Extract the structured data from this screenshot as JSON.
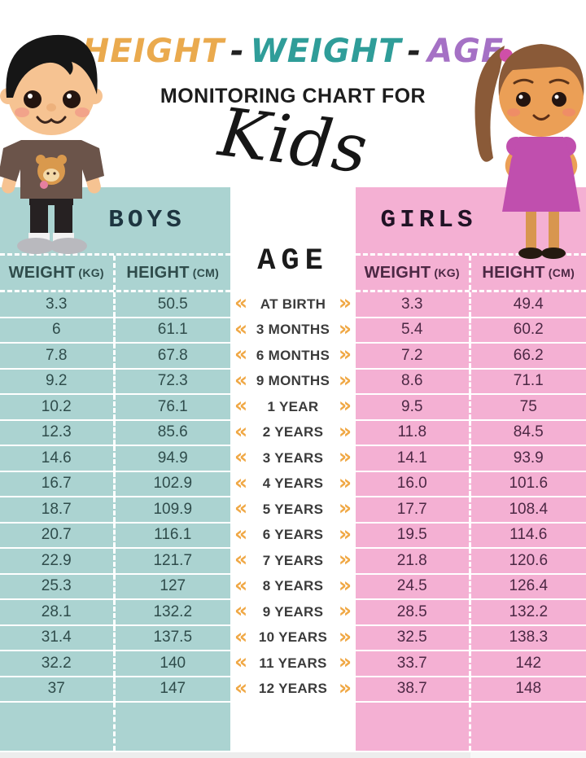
{
  "title": {
    "words": [
      {
        "text": "HEIGHT"
      },
      {
        "text": "WEIGHT"
      },
      {
        "text": "AGE"
      }
    ],
    "dash": "-",
    "subtitle": "MONITORING CHART FOR",
    "script_word": "Kids"
  },
  "boys": {
    "label": "BOYS",
    "columns": [
      {
        "label": "WEIGHT",
        "unit": "(KG)"
      },
      {
        "label": "HEIGHT",
        "unit": "(CM)"
      }
    ],
    "weights": [
      "3.3",
      "6",
      "7.8",
      "9.2",
      "10.2",
      "12.3",
      "14.6",
      "16.7",
      "18.7",
      "20.7",
      "22.9",
      "25.3",
      "28.1",
      "31.4",
      "32.2",
      "37"
    ],
    "heights": [
      "50.5",
      "61.1",
      "67.8",
      "72.3",
      "76.1",
      "85.6",
      "94.9",
      "102.9",
      "109.9",
      "116.1",
      "121.7",
      "127",
      "132.2",
      "137.5",
      "140",
      "147"
    ]
  },
  "girls": {
    "label": "GIRLS",
    "columns": [
      {
        "label": "WEIGHT",
        "unit": "(KG)"
      },
      {
        "label": "HEIGHT",
        "unit": "(CM)"
      }
    ],
    "weights": [
      "3.3",
      "5.4",
      "7.2",
      "8.6",
      "9.5",
      "11.8",
      "14.1",
      "16.0",
      "17.7",
      "19.5",
      "21.8",
      "24.5",
      "28.5",
      "32.5",
      "33.7",
      "38.7"
    ],
    "heights": [
      "49.4",
      "60.2",
      "66.2",
      "71.1",
      "75",
      "84.5",
      "93.9",
      "101.6",
      "108.4",
      "114.6",
      "120.6",
      "126.4",
      "132.2",
      "138.3",
      "142",
      "148"
    ]
  },
  "age": {
    "label": "AGE",
    "rows": [
      "AT BIRTH",
      "3 MONTHS",
      "6 MONTHS",
      "9 MONTHS",
      "1 YEAR",
      "2 YEARS",
      "3 YEARS",
      "4 YEARS",
      "5 YEARS",
      "6 YEARS",
      "7 YEARS",
      "8 YEARS",
      "9 YEARS",
      "10 YEARS",
      "11 YEARS",
      "12 YEARS"
    ],
    "left_chevron": "«",
    "right_chevron": "»"
  },
  "colors": {
    "title_height": "#eaaa4e",
    "title_weight": "#2f9d99",
    "title_age": "#a571c5",
    "title_dash": "#222222",
    "boys_bg": "#abd3d1",
    "boys_text": "#2f4c4b",
    "boys_title": "#1e3540",
    "girls_bg": "#f4b0d3",
    "girls_text": "#4c2844",
    "girls_title": "#201325",
    "age_title": "#1b1b1b",
    "age_label": "#3b3b3b",
    "chevron": "#f0a845"
  },
  "chart_data": {
    "type": "table",
    "title": "HEIGHT - WEIGHT - AGE MONITORING CHART FOR Kids",
    "categories": [
      "AT BIRTH",
      "3 MONTHS",
      "6 MONTHS",
      "9 MONTHS",
      "1 YEAR",
      "2 YEARS",
      "3 YEARS",
      "4 YEARS",
      "5 YEARS",
      "6 YEARS",
      "7 YEARS",
      "8 YEARS",
      "9 YEARS",
      "10 YEARS",
      "11 YEARS",
      "12 YEARS"
    ],
    "series": [
      {
        "name": "Boys Weight (kg)",
        "values": [
          3.3,
          6,
          7.8,
          9.2,
          10.2,
          12.3,
          14.6,
          16.7,
          18.7,
          20.7,
          22.9,
          25.3,
          28.1,
          31.4,
          32.2,
          37
        ]
      },
      {
        "name": "Boys Height (cm)",
        "values": [
          50.5,
          61.1,
          67.8,
          72.3,
          76.1,
          85.6,
          94.9,
          102.9,
          109.9,
          116.1,
          121.7,
          127,
          132.2,
          137.5,
          140,
          147
        ]
      },
      {
        "name": "Girls Weight (kg)",
        "values": [
          3.3,
          5.4,
          7.2,
          8.6,
          9.5,
          11.8,
          14.1,
          16.0,
          17.7,
          19.5,
          21.8,
          24.5,
          28.5,
          32.5,
          33.7,
          38.7
        ]
      },
      {
        "name": "Girls Height (cm)",
        "values": [
          49.4,
          60.2,
          66.2,
          71.1,
          75,
          84.5,
          93.9,
          101.6,
          108.4,
          114.6,
          120.6,
          126.4,
          132.2,
          138.3,
          142,
          148
        ]
      }
    ]
  }
}
